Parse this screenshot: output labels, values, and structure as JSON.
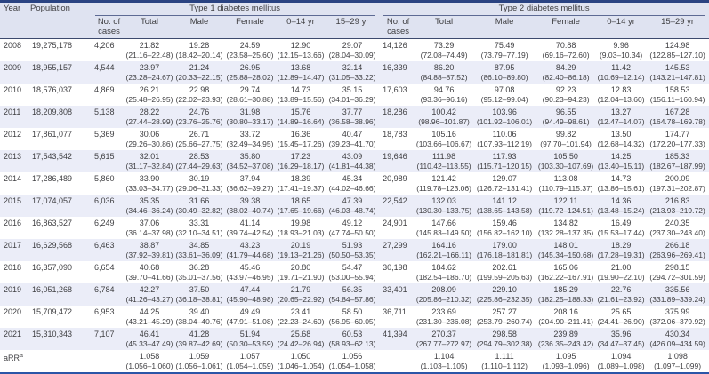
{
  "table": {
    "columns": {
      "year": "Year",
      "population": "Population",
      "group1": "Type 1 diabetes mellitus",
      "group2": "Type 2 diabetes mellitus",
      "sub": [
        "No. of cases",
        "Total",
        "Male",
        "Female",
        "0–14 yr",
        "15–29 yr"
      ]
    },
    "colors": {
      "top_border": "#2a4382",
      "bottom_border": "#2b55a7",
      "header_bg": "#dfe3f1",
      "alt_row_bg": "#ebedf8",
      "text": "#3f3f42"
    },
    "rows": [
      {
        "year": "2008",
        "population": "19,275,178",
        "t1_cases": "4,206",
        "t1": [
          [
            "21.82",
            "(21.16–22.48)"
          ],
          [
            "19.28",
            "(18.42–20.14)"
          ],
          [
            "24.59",
            "(23.58–25.60)"
          ],
          [
            "12.90",
            "(12.15–13.66)"
          ],
          [
            "29.07",
            "(28.04–30.09)"
          ]
        ],
        "t2_cases": "14,126",
        "t2": [
          [
            "73.29",
            "(72.08–74.49)"
          ],
          [
            "75.49",
            "(73.79–77.19)"
          ],
          [
            "70.88",
            "(69.16–72.60)"
          ],
          [
            "9.96",
            "(9.03–10.34)"
          ],
          [
            "124.98",
            "(122.85–127.10)"
          ]
        ]
      },
      {
        "year": "2009",
        "population": "18,955,157",
        "t1_cases": "4,544",
        "t1": [
          [
            "23.97",
            "(23.28–24.67)"
          ],
          [
            "21.24",
            "(20.33–22.15)"
          ],
          [
            "26.95",
            "(25.88–28.02)"
          ],
          [
            "13.68",
            "(12.89–14.47)"
          ],
          [
            "32.14",
            "(31.05–33.22)"
          ]
        ],
        "t2_cases": "16,339",
        "t2": [
          [
            "86.20",
            "(84.88–87.52)"
          ],
          [
            "87.95",
            "(86.10–89.80)"
          ],
          [
            "84.29",
            "(82.40–86.18)"
          ],
          [
            "11.42",
            "(10.69–12.14)"
          ],
          [
            "145.53",
            "(143.21–147.81)"
          ]
        ]
      },
      {
        "year": "2010",
        "population": "18,576,037",
        "t1_cases": "4,869",
        "t1": [
          [
            "26.21",
            "(25.48–26.95)"
          ],
          [
            "22.98",
            "(22.02–23.93)"
          ],
          [
            "29.74",
            "(28.61–30.88)"
          ],
          [
            "14.73",
            "(13.89–15.56)"
          ],
          [
            "35.15",
            "(34.01–36.29)"
          ]
        ],
        "t2_cases": "17,603",
        "t2": [
          [
            "94.76",
            "(93.36–96.16)"
          ],
          [
            "97.08",
            "(95.12–99.04)"
          ],
          [
            "92.23",
            "(90.23–94.23)"
          ],
          [
            "12.83",
            "(12.04–13.60)"
          ],
          [
            "158.53",
            "(156.11–160.94)"
          ]
        ]
      },
      {
        "year": "2011",
        "population": "18,209,808",
        "t1_cases": "5,138",
        "t1": [
          [
            "28.22",
            "(27.44–28.99)"
          ],
          [
            "24.76",
            "(23.76–25.76)"
          ],
          [
            "31.98",
            "(30.80–33.17)"
          ],
          [
            "15.76",
            "(14.89–16.64)"
          ],
          [
            "37.77",
            "(36.58–38.96)"
          ]
        ],
        "t2_cases": "18,286",
        "t2": [
          [
            "100.42",
            "(98.96–101.87)"
          ],
          [
            "103.96",
            "(101.92–106.01)"
          ],
          [
            "96.55",
            "(94.49–98.61)"
          ],
          [
            "13.27",
            "(12.47–14.07)"
          ],
          [
            "167.28",
            "(164.78–169.78)"
          ]
        ]
      },
      {
        "year": "2012",
        "population": "17,861,077",
        "t1_cases": "5,369",
        "t1": [
          [
            "30.06",
            "(29.26–30.86)"
          ],
          [
            "26.71",
            "(25.66–27.75)"
          ],
          [
            "33.72",
            "(32.49–34.95)"
          ],
          [
            "16.36",
            "(15.45–17.26)"
          ],
          [
            "40.47",
            "(39.23–41.70)"
          ]
        ],
        "t2_cases": "18,783",
        "t2": [
          [
            "105.16",
            "(103.66–106.67)"
          ],
          [
            "110.06",
            "(107.93–112.19)"
          ],
          [
            "99.82",
            "(97.70–101.94)"
          ],
          [
            "13.50",
            "(12.68–14.32)"
          ],
          [
            "174.77",
            "(172.20–177.33)"
          ]
        ]
      },
      {
        "year": "2013",
        "population": "17,543,542",
        "t1_cases": "5,615",
        "t1": [
          [
            "32.01",
            "(31.17–32.84)"
          ],
          [
            "28.53",
            "(27.44–29.63)"
          ],
          [
            "35.80",
            "(34.52–37.08)"
          ],
          [
            "17.23",
            "(16.29–18.17)"
          ],
          [
            "43.09",
            "(41.81–44.38)"
          ]
        ],
        "t2_cases": "19,646",
        "t2": [
          [
            "111.98",
            "(110.42–113.55)"
          ],
          [
            "117.93",
            "(115.71–120.15)"
          ],
          [
            "105.50",
            "(103.30–107.69)"
          ],
          [
            "14.25",
            "(13.40–15.11)"
          ],
          [
            "185.33",
            "(182.67–187.99)"
          ]
        ]
      },
      {
        "year": "2014",
        "population": "17,286,489",
        "t1_cases": "5,860",
        "t1": [
          [
            "33.90",
            "(33.03–34.77)"
          ],
          [
            "30.19",
            "(29.06–31.33)"
          ],
          [
            "37.94",
            "(36.62–39.27)"
          ],
          [
            "18.39",
            "(17.41–19.37)"
          ],
          [
            "45.34",
            "(44.02–46.66)"
          ]
        ],
        "t2_cases": "20,989",
        "t2": [
          [
            "121.42",
            "(119.78–123.06)"
          ],
          [
            "129.07",
            "(126.72–131.41)"
          ],
          [
            "113.08",
            "(110.79–115.37)"
          ],
          [
            "14.73",
            "(13.86–15.61)"
          ],
          [
            "200.09",
            "(197.31–202.87)"
          ]
        ]
      },
      {
        "year": "2015",
        "population": "17,074,057",
        "t1_cases": "6,036",
        "t1": [
          [
            "35.35",
            "(34.46–36.24)"
          ],
          [
            "31.66",
            "(30.49–32.82)"
          ],
          [
            "39.38",
            "(38.02–40.74)"
          ],
          [
            "18.65",
            "(17.65–19.66)"
          ],
          [
            "47.39",
            "(46.03–48.74)"
          ]
        ],
        "t2_cases": "22,542",
        "t2": [
          [
            "132.03",
            "(130.30–133.75)"
          ],
          [
            "141.12",
            "(138.65–143.58)"
          ],
          [
            "122.11",
            "(119.72–124.51)"
          ],
          [
            "14.36",
            "(13.48–15.24)"
          ],
          [
            "216.83",
            "(213.93–219.72)"
          ]
        ]
      },
      {
        "year": "2016",
        "population": "16,863,527",
        "t1_cases": "6,249",
        "t1": [
          [
            "37.06",
            "(36.14–37.98)"
          ],
          [
            "33.31",
            "(32.10–34.51)"
          ],
          [
            "41.14",
            "(39.74–42.54)"
          ],
          [
            "19.98",
            "(18.93–21.03)"
          ],
          [
            "49.12",
            "(47.74–50.50)"
          ]
        ],
        "t2_cases": "24,901",
        "t2": [
          [
            "147.66",
            "(145.83–149.50)"
          ],
          [
            "159.46",
            "(156.82–162.10)"
          ],
          [
            "134.82",
            "(132.28–137.35)"
          ],
          [
            "16.49",
            "(15.53–17.44)"
          ],
          [
            "240.35",
            "(237.30–243.40)"
          ]
        ]
      },
      {
        "year": "2017",
        "population": "16,629,568",
        "t1_cases": "6,463",
        "t1": [
          [
            "38.87",
            "(37.92–39.81)"
          ],
          [
            "34.85",
            "(33.61–36.09)"
          ],
          [
            "43.23",
            "(41.79–44.68)"
          ],
          [
            "20.19",
            "(19.13–21.26)"
          ],
          [
            "51.93",
            "(50.50–53.35)"
          ]
        ],
        "t2_cases": "27,299",
        "t2": [
          [
            "164.16",
            "(162.21–166.11)"
          ],
          [
            "179.00",
            "(176.18–181.81)"
          ],
          [
            "148.01",
            "(145.34–150.68)"
          ],
          [
            "18.29",
            "(17.28–19.31)"
          ],
          [
            "266.18",
            "(263.96–269.41)"
          ]
        ]
      },
      {
        "year": "2018",
        "population": "16,357,090",
        "t1_cases": "6,654",
        "t1": [
          [
            "40.68",
            "(39.70–41.66)"
          ],
          [
            "36.28",
            "(35.01–37.56)"
          ],
          [
            "45.46",
            "(43.97–46.95)"
          ],
          [
            "20.80",
            "(19.71–21.90)"
          ],
          [
            "54.47",
            "(53.00–55.94)"
          ]
        ],
        "t2_cases": "30,198",
        "t2": [
          [
            "184.62",
            "(182.54–186.70)"
          ],
          [
            "202.61",
            "(199.59–205.63)"
          ],
          [
            "165.06",
            "(162.22–167.91)"
          ],
          [
            "21.00",
            "(19.90–22.10)"
          ],
          [
            "298.15",
            "(294.72–301.59)"
          ]
        ]
      },
      {
        "year": "2019",
        "population": "16,051,268",
        "t1_cases": "6,784",
        "t1": [
          [
            "42.27",
            "(41.26–43.27)"
          ],
          [
            "37.50",
            "(36.18–38.81)"
          ],
          [
            "47.44",
            "(45.90–48.98)"
          ],
          [
            "21.79",
            "(20.65–22.92)"
          ],
          [
            "56.35",
            "(54.84–57.86)"
          ]
        ],
        "t2_cases": "33,401",
        "t2": [
          [
            "208.09",
            "(205.86–210.32)"
          ],
          [
            "229.10",
            "(225.86–232.35)"
          ],
          [
            "185.29",
            "(182.25–188.33)"
          ],
          [
            "22.76",
            "(21.61–23.92)"
          ],
          [
            "335.56",
            "(331.89–339.24)"
          ]
        ]
      },
      {
        "year": "2020",
        "population": "15,709,472",
        "t1_cases": "6,953",
        "t1": [
          [
            "44.25",
            "(43.21–45.29)"
          ],
          [
            "39.40",
            "(38.04–40.76)"
          ],
          [
            "49.49",
            "(47.91–51.08)"
          ],
          [
            "23.41",
            "(22.23–24.60)"
          ],
          [
            "58.50",
            "(56.95–60.05)"
          ]
        ],
        "t2_cases": "36,711",
        "t2": [
          [
            "233.69",
            "(231.30–236.08)"
          ],
          [
            "257.27",
            "(253.79–260.74)"
          ],
          [
            "208.16",
            "(204.90–211.41)"
          ],
          [
            "25.65",
            "(24.41–26.90)"
          ],
          [
            "375.99",
            "(372.06–379.92)"
          ]
        ]
      },
      {
        "year": "2021",
        "population": "15,310,343",
        "t1_cases": "7,107",
        "t1": [
          [
            "46.41",
            "(45.33–47.49)"
          ],
          [
            "41.28",
            "(39.87–42.69)"
          ],
          [
            "51.94",
            "(50.30–53.59)"
          ],
          [
            "25.68",
            "(24.42–26.94)"
          ],
          [
            "60.53",
            "(58.93–62.13)"
          ]
        ],
        "t2_cases": "41,394",
        "t2": [
          [
            "270.37",
            "(267.77–272.97)"
          ],
          [
            "298.58",
            "(294.79–302.38)"
          ],
          [
            "239.89",
            "(236.35–243.42)"
          ],
          [
            "35.96",
            "(34.47–37.45)"
          ],
          [
            "430.34",
            "(426.09–434.59)"
          ]
        ]
      }
    ],
    "arr": {
      "label": "aRR",
      "superscript": "a",
      "t1": [
        [
          "1.058",
          "(1.056–1.060)"
        ],
        [
          "1.059",
          "(1.056–1.061)"
        ],
        [
          "1.057",
          "(1.054–1.059)"
        ],
        [
          "1.050",
          "(1.046–1.054)"
        ],
        [
          "1.056",
          "(1.054–1.058)"
        ]
      ],
      "t2": [
        [
          "1.104",
          "(1.103–1.105)"
        ],
        [
          "1.111",
          "(1.110–1.112)"
        ],
        [
          "1.095",
          "(1.093–1.096)"
        ],
        [
          "1.094",
          "(1.089–1.098)"
        ],
        [
          "1.098",
          "(1.097–1.099)"
        ]
      ]
    }
  }
}
